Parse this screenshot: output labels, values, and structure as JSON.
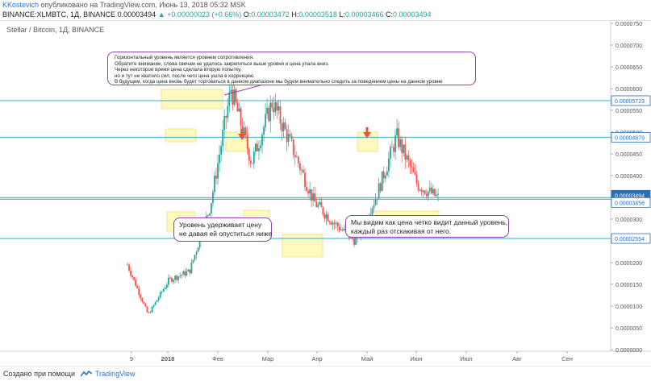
{
  "header": {
    "author": "KKostevich",
    "published": "опубликовано на TradingView.com, Июнь 13, 2018 05:32 MSK"
  },
  "symbol_bar": {
    "symbol": "BINANCE:XLMBTC, 1Д, BINANCE",
    "last": "0.00003494",
    "change": "+0.00000023 (+0.66%)",
    "o_label": "O:",
    "o": "0.00003472",
    "h_label": "H:",
    "h": "0.00003518",
    "l_label": "L:",
    "l": "0.00003466",
    "c_label": "C:",
    "c": "0.00003494"
  },
  "pair_label": "Stellar / Bitcoin, 1Д, BINANCE",
  "annotations": {
    "top": [
      "Горизонтальный уровень является уровнем сопротивления.",
      "Обратите внимание, слева свечам не удалось закрепиться выше уровня и цена упала вниз.",
      "Через некоторое время цена сделала вторую попытку,",
      "но и тут не хватило сил, после чего цена ушла в коррекцию.",
      "В будущем, когда цена вновь будет торговаться в данном диапазоне мы будем внимательно следить за поведением цены на данном уровне"
    ],
    "left": [
      "Уровень удерживает цену",
      "не давая ей опуститься ниже"
    ],
    "right": [
      "Мы видим как цена четко видит данный уровень,",
      "каждый раз отскакивая от него."
    ]
  },
  "footer": {
    "created_with": "Создано при помощи",
    "brand": "TradingView"
  },
  "colors": {
    "up": "#26a69a",
    "down": "#ef5350",
    "level": "#4fb8c8",
    "annotation_border": "#8e44ad",
    "highlight": "#fff59d",
    "arrow": "#e05a3a",
    "badge": "#2a6fb0"
  },
  "chart_data": {
    "type": "candlestick",
    "y_axis": {
      "min": 0,
      "max": 7.5e-05,
      "ticks": [
        "0.0000750",
        "0.0000700",
        "0.0000650",
        "0.0000600",
        "0.0000550",
        "0.0000500",
        "0.0000450",
        "0.0000400",
        "0.0000350",
        "0.0000300",
        "0.0000250",
        "0.0000200",
        "0.0000150",
        "0.0000100",
        "0.0000050",
        "0.0000000"
      ]
    },
    "x_axis": {
      "ticks": [
        "9",
        "2018",
        "Фев",
        "Мар",
        "Апр",
        "Май",
        "Июн",
        "Июл",
        "Авг",
        "Сен"
      ]
    },
    "levels": [
      {
        "value": 5.723e-05,
        "label": "0.00005723"
      },
      {
        "value": 4.879e-05,
        "label": "0.00004879"
      },
      {
        "value": 3.494e-05,
        "label": "0.00003494"
      },
      {
        "value": 3.456e-05,
        "label": "0.00003456"
      },
      {
        "value": 2.554e-05,
        "label": "0.00002554"
      }
    ],
    "approx_path": [
      {
        "t": "Dec-08",
        "c": 1.95e-05
      },
      {
        "t": "Dec-10",
        "c": 8e-06
      },
      {
        "t": "Dec-20",
        "c": 1.6e-05
      },
      {
        "t": "Dec-26",
        "c": 1.8e-05
      },
      {
        "t": "Jan-01",
        "c": 3.3e-05
      },
      {
        "t": "Jan-03",
        "c": 6e-05
      },
      {
        "t": "Jan-10",
        "c": 4.3e-05
      },
      {
        "t": "Jan-22",
        "c": 5.7e-05
      },
      {
        "t": "Feb-05",
        "c": 4.6e-05
      },
      {
        "t": "Feb-20",
        "c": 3.4e-05
      },
      {
        "t": "Mar-05",
        "c": 2.9e-05
      },
      {
        "t": "Mar-25",
        "c": 2.5e-05
      },
      {
        "t": "Apr-20",
        "c": 3.5e-05
      },
      {
        "t": "May-01",
        "c": 4.9e-05
      },
      {
        "t": "May-20",
        "c": 3.8e-05
      },
      {
        "t": "Jun-13",
        "c": 3.49e-05
      }
    ]
  }
}
